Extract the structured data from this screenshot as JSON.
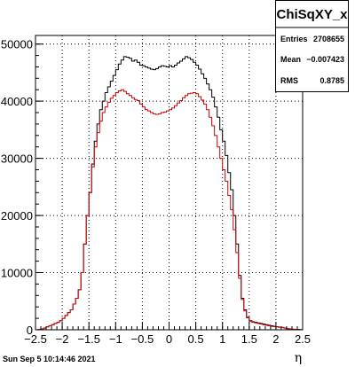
{
  "footer_timestamp": "Sun Sep  5 10:14:46 2021",
  "stats_box": {
    "title": "ChiSqXY_x",
    "entries_label": "Entries",
    "entries_value": "2708655",
    "mean_label": "Mean",
    "mean_value": "−0.007423",
    "rms_label": "RMS",
    "rms_value": "0.8785"
  },
  "chart_data": {
    "type": "line",
    "title": "",
    "xlabel": "η",
    "ylabel": "",
    "xlim": [
      -2.5,
      2.5
    ],
    "ylim": [
      0,
      51500
    ],
    "grid": true,
    "x_ticks": [
      -2.5,
      -2,
      -1.5,
      -1,
      -0.5,
      0,
      0.5,
      1,
      1.5,
      2,
      2.5
    ],
    "x_tick_labels": [
      "−2.5",
      "−2",
      "−1.5",
      "−1",
      "−0.5",
      "0",
      "0.5",
      "1",
      "1.5",
      "2",
      "2.5"
    ],
    "y_ticks": [
      0,
      10000,
      20000,
      30000,
      40000,
      50000
    ],
    "y_tick_labels": [
      "0",
      "10000",
      "20000",
      "30000",
      "40000",
      "50000"
    ],
    "bins": {
      "start": -2.5,
      "width": 0.05,
      "count": 100
    },
    "series": [
      {
        "color": "#000000",
        "values": [
          0,
          50,
          150,
          300,
          500,
          700,
          900,
          1100,
          1300,
          1600,
          2000,
          2500,
          3000,
          3500,
          4500,
          5500,
          7000,
          10000,
          15000,
          20000,
          24000,
          29000,
          33000,
          36000,
          38500,
          40000,
          41500,
          42500,
          43500,
          44500,
          45500,
          46500,
          47200,
          47800,
          47700,
          47500,
          47000,
          47200,
          46800,
          46300,
          46200,
          46000,
          45800,
          45600,
          45500,
          45700,
          46000,
          46200,
          46100,
          46000,
          46200,
          46000,
          46300,
          46700,
          47000,
          47400,
          47800,
          47600,
          47300,
          46800,
          46300,
          45600,
          44800,
          44000,
          43000,
          42000,
          40700,
          39000,
          37200,
          35000,
          33000,
          30500,
          27500,
          24500,
          20000,
          15000,
          9500,
          5500,
          3500,
          2200,
          1600,
          1400,
          1300,
          1200,
          1100,
          1000,
          900,
          800,
          700,
          600,
          550,
          450,
          400,
          300,
          200,
          150,
          100,
          80,
          50,
          20
        ]
      },
      {
        "color": "#cc0000",
        "values": [
          0,
          50,
          150,
          300,
          500,
          700,
          900,
          1100,
          1300,
          1600,
          2000,
          2500,
          3000,
          3500,
          4500,
          5500,
          7000,
          10000,
          15000,
          20000,
          24000,
          28500,
          32000,
          34500,
          36500,
          38000,
          39000,
          39800,
          40500,
          41000,
          41500,
          41800,
          42000,
          41700,
          41300,
          41000,
          40600,
          40300,
          40100,
          39500,
          39000,
          38500,
          38300,
          38000,
          37800,
          37700,
          37800,
          38000,
          38100,
          38300,
          38500,
          38800,
          39200,
          39700,
          40100,
          40600,
          41000,
          41300,
          41400,
          41500,
          41300,
          40800,
          40200,
          39500,
          38500,
          37200,
          35700,
          34000,
          32000,
          30000,
          28000,
          26000,
          23500,
          21000,
          17500,
          13500,
          9000,
          5300,
          3300,
          2100,
          1500,
          1300,
          1200,
          1100,
          1000,
          900,
          800,
          700,
          600,
          550,
          500,
          450,
          400,
          300,
          200,
          150,
          100,
          80,
          50,
          20
        ]
      }
    ]
  }
}
